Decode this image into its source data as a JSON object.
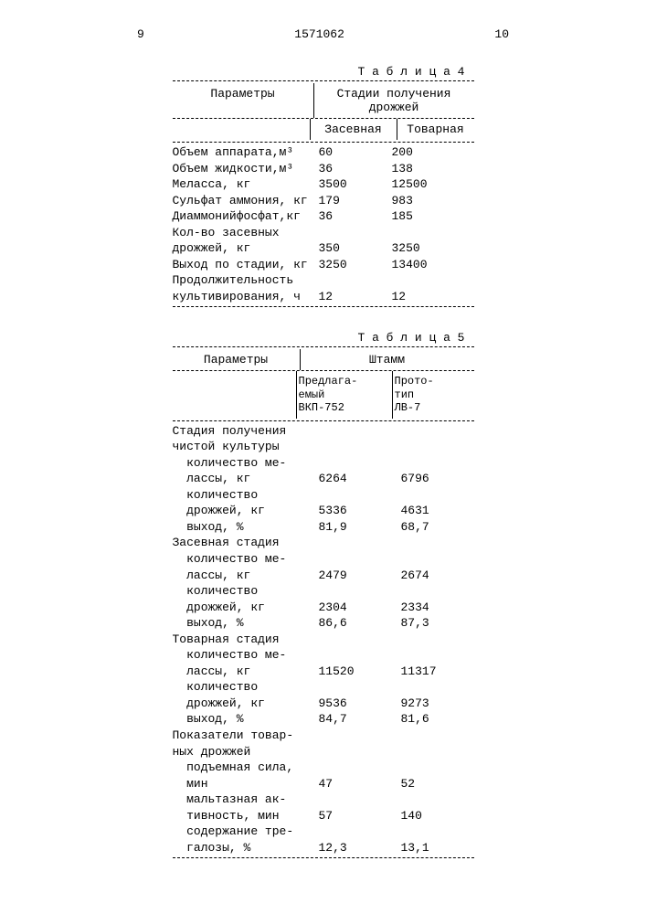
{
  "doc_number": "1571062",
  "page_left": "9",
  "page_right": "10",
  "table4": {
    "caption": "Т а б л и ц а   4",
    "header_left": "Параметры",
    "header_right": "Стадии получения дрожжей",
    "sub_a": "Засевная",
    "sub_b": "Товарная",
    "rows": [
      {
        "p": "Объем аппарата,м³",
        "a": "60",
        "b": "200"
      },
      {
        "p": "Объем жидкости,м³",
        "a": "36",
        "b": "138"
      },
      {
        "p": "Меласса, кг",
        "a": "3500",
        "b": "12500"
      },
      {
        "p": "Сульфат аммония, кг",
        "a": "179",
        "b": "983"
      },
      {
        "p": "Диаммонийфосфат,кг",
        "a": "36",
        "b": "185"
      },
      {
        "p": "Кол-во засевных",
        "a": "",
        "b": ""
      },
      {
        "p": "дрожжей, кг",
        "a": "350",
        "b": "3250"
      },
      {
        "p": "Выход по стадии, кг",
        "a": "3250",
        "b": "13400"
      },
      {
        "p": "Продолжительность",
        "a": "",
        "b": ""
      },
      {
        "p": "культивирования, ч",
        "a": "12",
        "b": "12"
      }
    ]
  },
  "table5": {
    "caption": "Т а б л и ц а   5",
    "header_left": "Параметры",
    "header_right": "Штамм",
    "sub_a": "Предлага-\nемый\nВКП-752",
    "sub_b": "Прото-\nтип\nЛВ-7",
    "groups": [
      {
        "title": "Стадия получения\nчистой культуры",
        "rows": [
          {
            "p": "  количество ме-",
            "a": "",
            "b": ""
          },
          {
            "p": "  лассы, кг",
            "a": "6264",
            "b": "6796"
          },
          {
            "p": "  количество",
            "a": "",
            "b": ""
          },
          {
            "p": "  дрожжей, кг",
            "a": "5336",
            "b": "4631"
          },
          {
            "p": "  выход, %",
            "a": "81,9",
            "b": "68,7"
          }
        ]
      },
      {
        "title": "Засевная стадия",
        "rows": [
          {
            "p": "  количество ме-",
            "a": "",
            "b": ""
          },
          {
            "p": "  лассы, кг",
            "a": "2479",
            "b": "2674"
          },
          {
            "p": "  количество",
            "a": "",
            "b": ""
          },
          {
            "p": "  дрожжей, кг",
            "a": "2304",
            "b": "2334"
          },
          {
            "p": "  выход, %",
            "a": "86,6",
            "b": "87,3"
          }
        ]
      },
      {
        "title": "Товарная стадия",
        "rows": [
          {
            "p": "  количество ме-",
            "a": "",
            "b": ""
          },
          {
            "p": "  лассы, кг",
            "a": "11520",
            "b": "11317"
          },
          {
            "p": "  количество",
            "a": "",
            "b": ""
          },
          {
            "p": "  дрожжей, кг",
            "a": "9536",
            "b": "9273"
          },
          {
            "p": "  выход, %",
            "a": "84,7",
            "b": "81,6"
          }
        ]
      },
      {
        "title": "Показатели товар-\nных дрожжей",
        "rows": [
          {
            "p": "  подъемная сила,",
            "a": "",
            "b": ""
          },
          {
            "p": "  мин",
            "a": "47",
            "b": "52"
          },
          {
            "p": "  мальтазная ак-",
            "a": "",
            "b": ""
          },
          {
            "p": "  тивность, мин",
            "a": "57",
            "b": "140"
          },
          {
            "p": "  содержание тре-",
            "a": "",
            "b": ""
          },
          {
            "p": "  галозы, %",
            "a": "12,3",
            "b": "13,1"
          }
        ]
      }
    ]
  }
}
